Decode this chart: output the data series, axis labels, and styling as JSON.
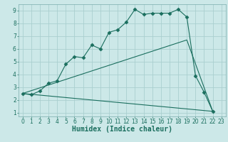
{
  "xlabel": "Humidex (Indice chaleur)",
  "background_color": "#cce8e8",
  "grid_color": "#aacfcf",
  "line_color": "#1a6e5e",
  "xlim": [
    -0.5,
    23.5
  ],
  "ylim": [
    0.7,
    9.5
  ],
  "xticks": [
    0,
    1,
    2,
    3,
    4,
    5,
    6,
    7,
    8,
    9,
    10,
    11,
    12,
    13,
    14,
    15,
    16,
    17,
    18,
    19,
    20,
    21,
    22,
    23
  ],
  "yticks": [
    1,
    2,
    3,
    4,
    5,
    6,
    7,
    8,
    9
  ],
  "line1_x": [
    0,
    1,
    2,
    3,
    4,
    5,
    6,
    7,
    8,
    9,
    10,
    11,
    12,
    13,
    14,
    15,
    16,
    17,
    18,
    19,
    20,
    21,
    22
  ],
  "line1_y": [
    2.5,
    2.4,
    2.7,
    3.3,
    3.5,
    4.8,
    5.4,
    5.3,
    6.3,
    6.0,
    7.3,
    7.5,
    8.1,
    9.1,
    8.7,
    8.8,
    8.8,
    8.8,
    9.1,
    8.5,
    3.9,
    2.6,
    1.1
  ],
  "line2_x": [
    0,
    22
  ],
  "line2_y": [
    2.5,
    1.1
  ],
  "line3_x": [
    0,
    19,
    22
  ],
  "line3_y": [
    2.5,
    6.7,
    1.1
  ],
  "marker": "D",
  "markersize": 2.5,
  "linewidth": 0.8,
  "xlabel_fontsize": 7,
  "tick_fontsize": 5.5
}
